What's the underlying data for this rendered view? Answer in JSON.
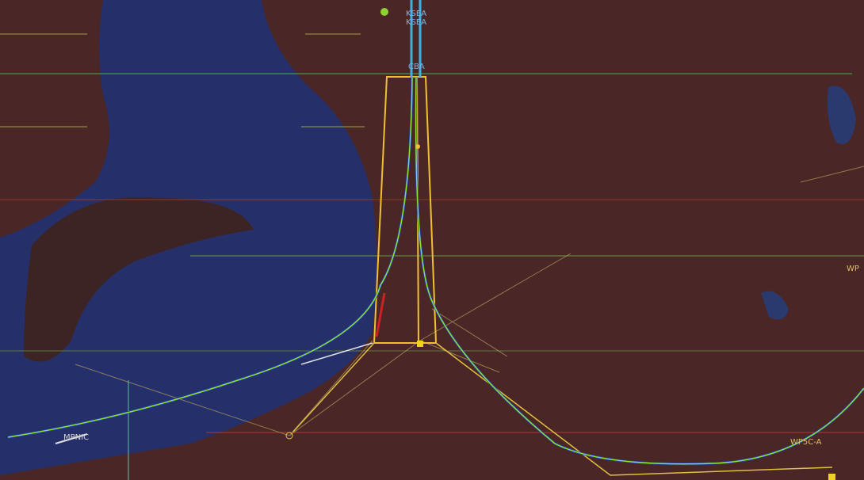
{
  "map": {
    "labels": [
      "KSEA",
      "KSEA",
      "CBA",
      "WP",
      "WP5C-A",
      "MPNIC"
    ]
  }
}
